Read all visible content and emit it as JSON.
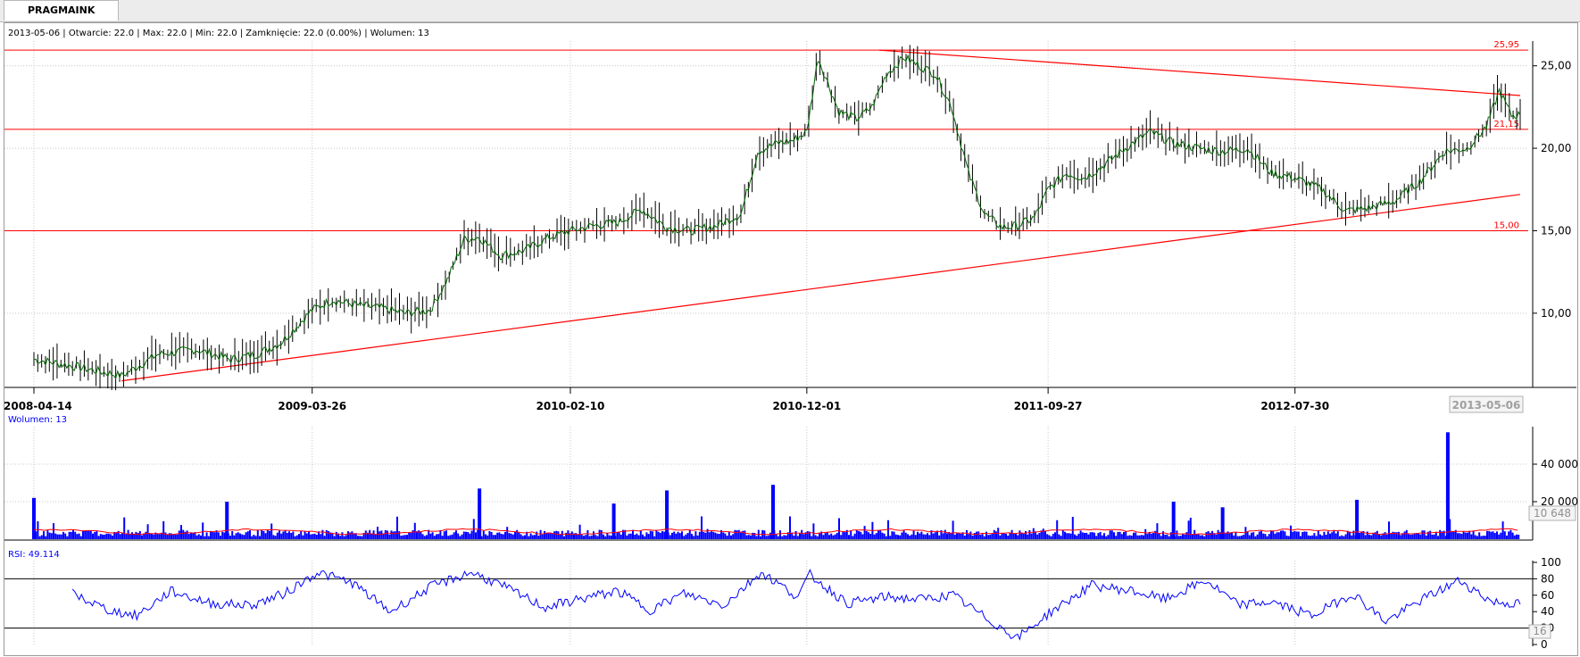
{
  "tab": {
    "label": "PRAGMAINK"
  },
  "header": {
    "info": "2013-05-06 | Otwarcie: 22.0 | Max: 22.0 | Min: 22.0 | Zamknięcie: 22.0 (0.00%)  | Wolumen: 13"
  },
  "colors": {
    "price": "#006400",
    "level": "#ff0000",
    "indicator": "#0000ff",
    "volume_ma": "#ff0000"
  },
  "chart_data": [
    {
      "type": "line",
      "title": "",
      "x_tick_labels": [
        "2008-04-14",
        "2009-03-26",
        "2010-02-10",
        "2010-12-01",
        "2011-09-27",
        "2012-07-30"
      ],
      "current_date": "2013-05-06",
      "ylim": [
        5.5,
        26.5
      ],
      "y_ticks": [
        "10,00",
        "15,00",
        "20,00",
        "25,00"
      ],
      "horizontal_levels": [
        {
          "value": 25.95,
          "label": "25,95"
        },
        {
          "value": 21.15,
          "label": "21,15"
        },
        {
          "value": 15.0,
          "label": "15,00"
        }
      ],
      "trendlines": [
        {
          "from": [
            "2008-08-01",
            5.9
          ],
          "to": [
            "2013-05-06",
            17.2
          ]
        },
        {
          "from": [
            "2011-03-01",
            25.95
          ],
          "to": [
            "2013-05-06",
            23.2
          ]
        }
      ],
      "series": [
        {
          "x": [
            "2008-04-14",
            "2008-06-01",
            "2008-08-01",
            "2008-09-15",
            "2008-11-01",
            "2008-12-15",
            "2009-01-15",
            "2009-02-15",
            "2009-03-26",
            "2009-04-20",
            "2009-05-20",
            "2009-06-20",
            "2009-07-20",
            "2009-08-20",
            "2009-09-10",
            "2009-10-01",
            "2009-10-20",
            "2009-11-15",
            "2009-12-15",
            "2010-01-15",
            "2010-02-10",
            "2010-03-10",
            "2010-04-10",
            "2010-05-10",
            "2010-06-10",
            "2010-07-10",
            "2010-08-10",
            "2010-09-10",
            "2010-10-01",
            "2010-10-25",
            "2010-11-15",
            "2010-12-01",
            "2010-12-15",
            "2011-01-10",
            "2011-02-01",
            "2011-02-20",
            "2011-03-10",
            "2011-04-01",
            "2011-04-20",
            "2011-05-10",
            "2011-05-30",
            "2011-06-20",
            "2011-07-10",
            "2011-08-01",
            "2011-08-20",
            "2011-09-10",
            "2011-09-27",
            "2011-10-20",
            "2011-11-10",
            "2011-12-01",
            "2012-01-01",
            "2012-02-01",
            "2012-03-01",
            "2012-04-01",
            "2012-05-01",
            "2012-06-01",
            "2012-07-01",
            "2012-07-30",
            "2012-09-01",
            "2012-10-01",
            "2012-11-01",
            "2012-12-01",
            "2013-01-01",
            "2013-02-01",
            "2013-03-01",
            "2013-03-25",
            "2013-04-10",
            "2013-04-25",
            "2013-05-06"
          ],
          "y": [
            7.2,
            6.8,
            6.2,
            7.5,
            7.8,
            7.2,
            7.5,
            8.2,
            10.2,
            10.8,
            10.5,
            10.3,
            10.0,
            10.2,
            12.0,
            14.5,
            14.6,
            13.5,
            13.8,
            14.6,
            15.0,
            15.3,
            15.5,
            16.3,
            15.2,
            15.0,
            15.3,
            16.0,
            19.8,
            20.3,
            20.5,
            21.0,
            25.5,
            22.2,
            21.8,
            22.5,
            24.5,
            25.5,
            25.0,
            24.5,
            22.5,
            18.5,
            16.0,
            15.2,
            15.3,
            15.8,
            17.5,
            18.5,
            18.2,
            18.8,
            20.0,
            21.0,
            20.3,
            20.0,
            19.8,
            20.0,
            18.5,
            18.2,
            17.5,
            16.2,
            16.4,
            16.8,
            18.0,
            19.8,
            20.0,
            21.3,
            23.5,
            22.0,
            22.0
          ]
        }
      ]
    },
    {
      "type": "bar",
      "title": "Wolumen: 13",
      "current_value": "10 648",
      "ylim": [
        0,
        60000
      ],
      "y_ticks": [
        "20 000",
        "40 000"
      ],
      "spikes": [
        {
          "x": "2008-04-14",
          "value": 22000
        },
        {
          "x": "2008-12-10",
          "value": 20000
        },
        {
          "x": "2009-10-20",
          "value": 27000
        },
        {
          "x": "2010-04-05",
          "value": 19000
        },
        {
          "x": "2010-06-10",
          "value": 26000
        },
        {
          "x": "2010-10-20",
          "value": 29000
        },
        {
          "x": "2012-03-01",
          "value": 20000
        },
        {
          "x": "2012-05-01",
          "value": 17000
        },
        {
          "x": "2012-10-15",
          "value": 21000
        },
        {
          "x": "2013-02-05",
          "value": 57000
        }
      ]
    },
    {
      "type": "line",
      "title": "RSI: 49.114",
      "current_value": "16",
      "ylim": [
        0,
        100
      ],
      "y_ticks": [
        "0",
        "20",
        "40",
        "60",
        "80",
        "100"
      ],
      "levels": [
        80,
        20
      ],
      "series": [
        {
          "x": [
            "2008-06-01",
            "2008-07-15",
            "2008-08-20",
            "2008-10-01",
            "2008-11-20",
            "2009-01-10",
            "2009-02-20",
            "2009-04-01",
            "2009-05-15",
            "2009-07-01",
            "2009-08-20",
            "2009-10-10",
            "2009-11-20",
            "2010-01-10",
            "2010-02-20",
            "2010-04-10",
            "2010-05-20",
            "2010-07-01",
            "2010-08-20",
            "2010-10-05",
            "2010-11-20",
            "2010-12-05",
            "2011-01-20",
            "2011-03-10",
            "2011-04-20",
            "2011-06-01",
            "2011-07-15",
            "2011-08-20",
            "2011-10-01",
            "2011-11-20",
            "2012-01-10",
            "2012-02-20",
            "2012-04-10",
            "2012-05-20",
            "2012-07-01",
            "2012-08-20",
            "2012-10-10",
            "2012-11-20",
            "2013-01-10",
            "2013-02-20",
            "2013-04-01",
            "2013-05-06"
          ],
          "y": [
            62,
            42,
            35,
            65,
            50,
            48,
            62,
            88,
            75,
            40,
            70,
            88,
            70,
            45,
            55,
            65,
            42,
            62,
            48,
            88,
            58,
            85,
            50,
            58,
            55,
            60,
            30,
            8,
            40,
            72,
            65,
            55,
            78,
            48,
            52,
            35,
            62,
            28,
            58,
            78,
            52,
            49
          ]
        }
      ]
    }
  ]
}
